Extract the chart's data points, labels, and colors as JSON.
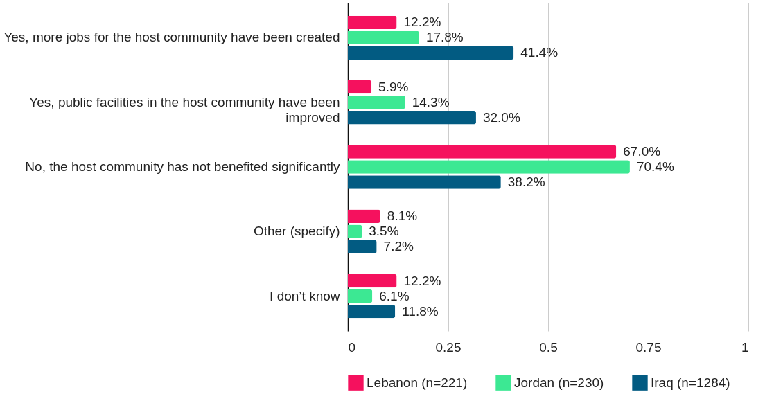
{
  "chart_data": {
    "type": "bar",
    "orientation": "horizontal",
    "categories": [
      "Yes, more jobs for the host community have been created",
      "Yes, public facilities in the host community have been improved",
      "No, the host community has not benefited significantly",
      "Other (specify)",
      "I don’t know"
    ],
    "series": [
      {
        "name": "Lebanon (n=221)",
        "color": "#f5115e",
        "values": [
          0.122,
          0.059,
          0.67,
          0.081,
          0.122
        ],
        "value_labels": [
          "12.2%",
          "5.9%",
          "67.0%",
          "8.1%",
          "12.2%"
        ]
      },
      {
        "name": "Jordan (n=230)",
        "color": "#3ce893",
        "values": [
          0.178,
          0.143,
          0.704,
          0.035,
          0.061
        ],
        "value_labels": [
          "17.8%",
          "14.3%",
          "70.4%",
          "3.5%",
          "6.1%"
        ]
      },
      {
        "name": "Iraq (n=1284)",
        "color": "#025b82",
        "values": [
          0.414,
          0.32,
          0.382,
          0.072,
          0.118
        ],
        "value_labels": [
          "41.4%",
          "32.0%",
          "38.2%",
          "7.2%",
          "11.8%"
        ]
      }
    ],
    "xlim": [
      0,
      1
    ],
    "xticks": [
      0,
      0.25,
      0.5,
      0.75,
      1
    ],
    "grid": "x",
    "legend": "bottom"
  }
}
